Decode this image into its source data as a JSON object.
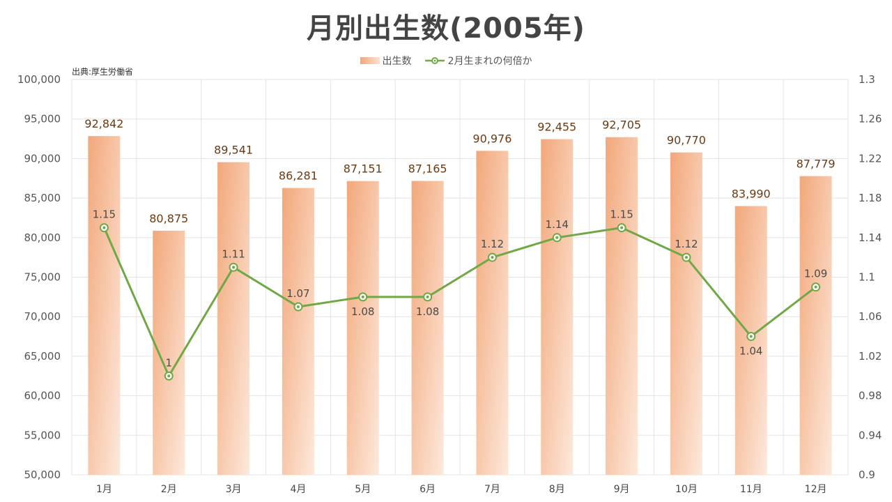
{
  "title": "月別出生数(2005年)",
  "source": "出典:厚生労働省",
  "colors": {
    "bar_dark": "#f2a77a",
    "bar_light": "#fde6d8",
    "line": "#70a845",
    "grid": "#e3e3e3"
  },
  "chart_data": {
    "type": "bar",
    "title": "月別出生数(2005年)",
    "categories": [
      "1月",
      "2月",
      "3月",
      "4月",
      "5月",
      "6月",
      "7月",
      "8月",
      "9月",
      "10月",
      "11月",
      "12月"
    ],
    "series": [
      {
        "name": "出生数",
        "type": "bar",
        "axis": "left",
        "values": [
          92842,
          80875,
          89541,
          86281,
          87151,
          87165,
          90976,
          92455,
          92705,
          90770,
          83990,
          87779
        ],
        "labels": [
          "92,842",
          "80,875",
          "89,541",
          "86,281",
          "87,151",
          "87,165",
          "90,976",
          "92,455",
          "92,705",
          "90,770",
          "83,990",
          "87,779"
        ]
      },
      {
        "name": "2月生まれの何倍か",
        "type": "line",
        "axis": "right",
        "values": [
          1.15,
          1,
          1.11,
          1.07,
          1.08,
          1.08,
          1.12,
          1.14,
          1.15,
          1.12,
          1.04,
          1.09
        ],
        "labels": [
          "1.15",
          "1",
          "1.11",
          "1.07",
          "1.08",
          "1.08",
          "1.12",
          "1.14",
          "1.15",
          "1.12",
          "1.04",
          "1.09"
        ],
        "label_side": [
          "above",
          "above",
          "above",
          "above",
          "below",
          "below",
          "above",
          "above",
          "above",
          "above",
          "below",
          "above"
        ]
      }
    ],
    "y_left": {
      "min": 50000,
      "max": 100000,
      "ticks": [
        50000,
        55000,
        60000,
        65000,
        70000,
        75000,
        80000,
        85000,
        90000,
        95000,
        100000
      ],
      "tick_labels": [
        "50,000",
        "55,000",
        "60,000",
        "65,000",
        "70,000",
        "75,000",
        "80,000",
        "85,000",
        "90,000",
        "95,000",
        "100,000"
      ]
    },
    "y_right": {
      "min": 0.9,
      "max": 1.3,
      "ticks": [
        0.9,
        0.94,
        0.98,
        1.02,
        1.06,
        1.1,
        1.14,
        1.18,
        1.22,
        1.26,
        1.3
      ],
      "tick_labels": [
        "0.9",
        "0.94",
        "0.98",
        "1.02",
        "1.06",
        "1.1",
        "1.14",
        "1.18",
        "1.22",
        "1.26",
        "1.3"
      ]
    },
    "grid": true,
    "legend_position": "top-center"
  }
}
